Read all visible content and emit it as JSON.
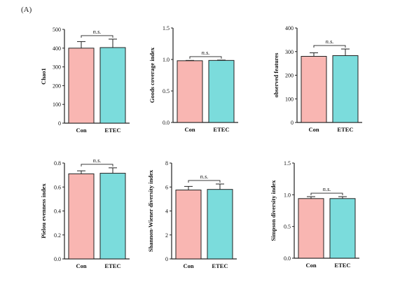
{
  "figure": {
    "panel_label": "(A)"
  },
  "colors": {
    "con": "#f9b6b2",
    "etec": "#7bdcdc",
    "axis": "#222222"
  },
  "chart_data": [
    {
      "type": "bar",
      "ylabel": "Chao1",
      "ylim": [
        0,
        500
      ],
      "ticks": [
        0,
        100,
        200,
        300,
        400,
        500
      ],
      "categories": [
        "Con",
        "ETEC"
      ],
      "values": [
        400,
        403
      ],
      "errors": [
        35,
        45
      ],
      "annotation": "n.s."
    },
    {
      "type": "bar",
      "ylabel": "Goods coverage index",
      "ylim": [
        0,
        1.5
      ],
      "ticks": [
        "0.0",
        "0.5",
        "1.0",
        "1.5"
      ],
      "categories": [
        "Con",
        "ETEC"
      ],
      "values": [
        0.98,
        0.985
      ],
      "errors": [
        0.005,
        0.005
      ],
      "annotation": "n.s."
    },
    {
      "type": "bar",
      "ylabel": "observed features",
      "ylim": [
        0,
        400
      ],
      "ticks": [
        0,
        100,
        200,
        300,
        400
      ],
      "categories": [
        "Con",
        "ETEC"
      ],
      "values": [
        280,
        283
      ],
      "errors": [
        15,
        28
      ],
      "annotation": "n.s."
    },
    {
      "type": "bar",
      "ylabel": "Pielou evenness index",
      "ylim": [
        0,
        0.8
      ],
      "ticks": [
        "0.0",
        "0.2",
        "0.4",
        "0.6",
        "0.8"
      ],
      "categories": [
        "Con",
        "ETEC"
      ],
      "values": [
        0.71,
        0.715
      ],
      "errors": [
        0.025,
        0.045
      ],
      "annotation": "n.s."
    },
    {
      "type": "bar",
      "ylabel": "Shannon-Wiener diversity index",
      "ylim": [
        0,
        8
      ],
      "ticks": [
        0,
        2,
        4,
        6,
        8
      ],
      "categories": [
        "Con",
        "ETEC"
      ],
      "values": [
        5.75,
        5.8
      ],
      "errors": [
        0.3,
        0.45
      ],
      "annotation": "n.s."
    },
    {
      "type": "bar",
      "ylabel": "Simpson diversity index",
      "ylim": [
        0,
        1.5
      ],
      "ticks": [
        "0.0",
        "0.5",
        "1.0",
        "1.5"
      ],
      "categories": [
        "Con",
        "ETEC"
      ],
      "values": [
        0.94,
        0.94
      ],
      "errors": [
        0.03,
        0.03
      ],
      "annotation": "n.s."
    }
  ]
}
